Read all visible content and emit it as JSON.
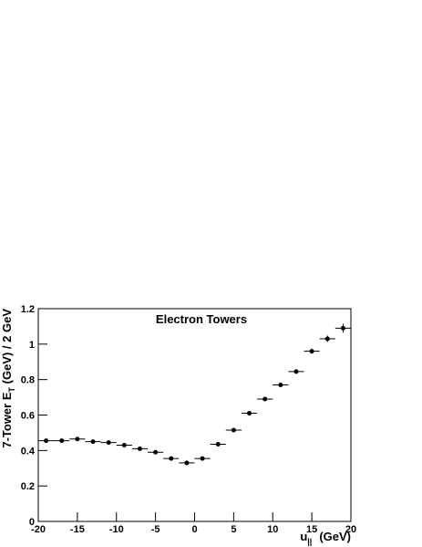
{
  "chart_data": {
    "type": "scatter",
    "title": "Electron Towers",
    "xlabel": [
      "u",
      "||",
      "(GeV)"
    ],
    "ylabel": [
      "7-Tower E",
      "T",
      " (GeV) / 2 GeV"
    ],
    "x": [
      -19,
      -17,
      -15,
      -13,
      -11,
      -9,
      -7,
      -5,
      -3,
      -1,
      1,
      3,
      5,
      7,
      9,
      11,
      13,
      15,
      17,
      19
    ],
    "values": [
      0.455,
      0.455,
      0.465,
      0.45,
      0.445,
      0.43,
      0.41,
      0.39,
      0.355,
      0.33,
      0.355,
      0.435,
      0.515,
      0.61,
      0.69,
      0.77,
      0.845,
      0.96,
      1.03,
      1.09
    ],
    "yerr": [
      0.006,
      0.006,
      0.005,
      0.005,
      0.005,
      0.005,
      0.005,
      0.005,
      0.005,
      0.005,
      0.005,
      0.006,
      0.006,
      0.008,
      0.009,
      0.01,
      0.012,
      0.014,
      0.018,
      0.025
    ],
    "xerr": 1,
    "color": "#000000",
    "xlim": [
      -20,
      20
    ],
    "xticks": [
      -20,
      -15,
      -10,
      -5,
      0,
      5,
      10,
      15,
      20
    ],
    "ylim": [
      0,
      1.2
    ],
    "yticks": [
      0,
      0.2,
      0.4,
      0.6,
      0.8,
      1,
      1.2
    ]
  }
}
